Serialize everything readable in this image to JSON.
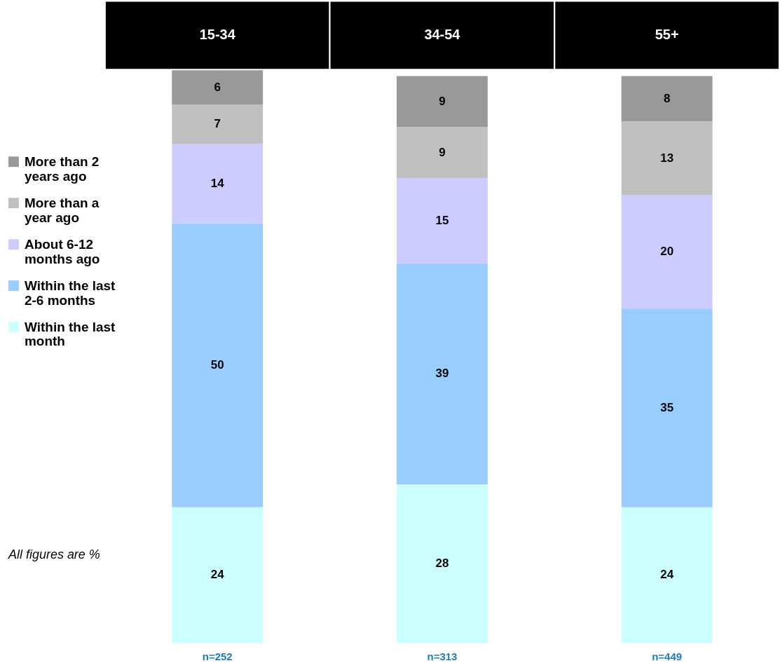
{
  "chart_data": {
    "type": "bar",
    "stacked": true,
    "categories": [
      "15-34",
      "34-54",
      "55+"
    ],
    "series": [
      {
        "name": "Within the last month",
        "color": "#ccffff",
        "values": [
          24,
          28,
          24
        ]
      },
      {
        "name": "Within the last 2-6 months",
        "color": "#99ccff",
        "values": [
          50,
          39,
          35
        ]
      },
      {
        "name": "About 6-12 months ago",
        "color": "#ccccff",
        "values": [
          14,
          15,
          20
        ]
      },
      {
        "name": "More than a year ago",
        "color": "#c0c0c0",
        "values": [
          7,
          9,
          13
        ]
      },
      {
        "name": "More than 2 years ago",
        "color": "#999999",
        "values": [
          6,
          9,
          8
        ]
      }
    ],
    "ylim": [
      0,
      101
    ],
    "tick_labels": "x",
    "data_labels": true,
    "legend": "left",
    "annotations": [
      "n=252",
      "n=313",
      "n=449",
      "All figures are %"
    ]
  }
}
